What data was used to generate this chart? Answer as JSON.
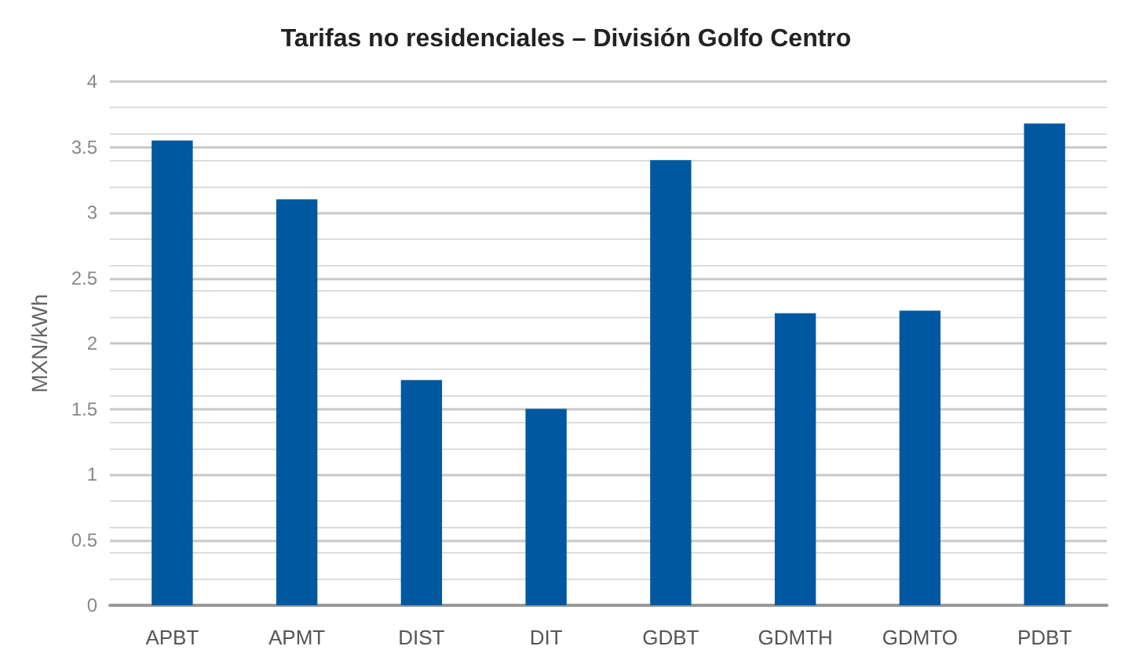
{
  "chart_data": {
    "type": "bar",
    "title": "Tarifas no residenciales – División Golfo Centro",
    "ylabel": "MXN/kWh",
    "categories": [
      "APBT",
      "APMT",
      "DIST",
      "DIT",
      "GDBT",
      "GDMTH",
      "GDMTO",
      "PDBT"
    ],
    "values": [
      3.55,
      3.1,
      1.72,
      1.5,
      3.4,
      2.23,
      2.25,
      3.68
    ],
    "color": "#0058a0",
    "ylim": [
      0,
      4
    ],
    "yticks": [
      0,
      0.5,
      1,
      1.5,
      2,
      2.5,
      3,
      3.5,
      4
    ],
    "grid": "y"
  }
}
